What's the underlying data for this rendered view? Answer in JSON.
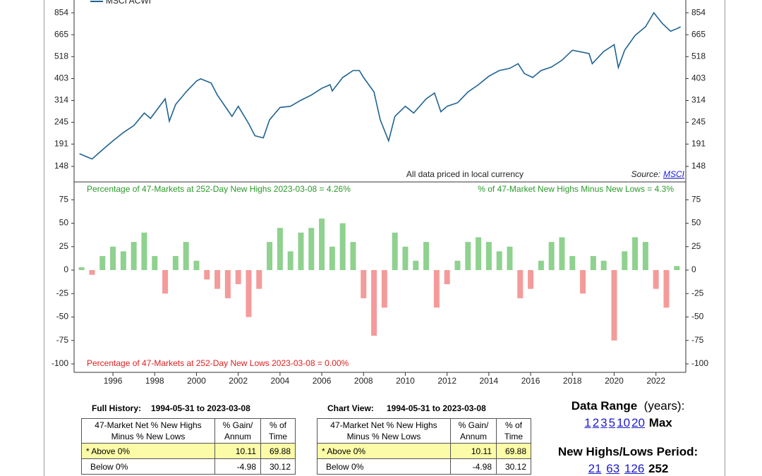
{
  "chart_data": [
    {
      "type": "line",
      "log_scale": true,
      "annotation": "All data priced in local currency",
      "source_label": "Source:",
      "source_link": "MSCI",
      "x": [
        1994.4,
        1995.0,
        1995.5,
        1996.0,
        1996.5,
        1997.0,
        1997.5,
        1997.8,
        1998.5,
        1998.7,
        1999.0,
        1999.5,
        2000.0,
        2000.2,
        2000.7,
        2001.0,
        2001.7,
        2002.0,
        2002.5,
        2002.8,
        2003.2,
        2003.5,
        2004.0,
        2004.5,
        2005.0,
        2005.5,
        2006.0,
        2006.4,
        2006.5,
        2007.0,
        2007.5,
        2007.8,
        2008.0,
        2008.5,
        2008.8,
        2009.2,
        2009.5,
        2010.0,
        2010.4,
        2011.0,
        2011.4,
        2011.7,
        2012.0,
        2012.5,
        2013.0,
        2013.5,
        2014.0,
        2014.5,
        2015.0,
        2015.4,
        2015.7,
        2016.1,
        2016.5,
        2017.0,
        2017.5,
        2018.0,
        2018.8,
        2018.95,
        2019.5,
        2020.0,
        2020.2,
        2020.5,
        2021.0,
        2021.5,
        2021.9,
        2022.3,
        2022.7,
        2023.0,
        2023.18
      ],
      "series": [
        {
          "name": "MSCI ACWI",
          "color": "#1f6391",
          "values": [
            171,
            161,
            179,
            198,
            218,
            236,
            272,
            256,
            320,
            248,
            300,
            346,
            392,
            402,
            383,
            334,
            262,
            294,
            241,
            210,
            205,
            252,
            290,
            294,
            315,
            334,
            361,
            376,
            350,
            408,
            442,
            442,
            408,
            346,
            252,
            198,
            262,
            294,
            272,
            320,
            342,
            276,
            294,
            306,
            346,
            376,
            414,
            442,
            453,
            478,
            427,
            408,
            442,
            460,
            497,
            557,
            536,
            478,
            549,
            594,
            457,
            557,
            659,
            728,
            854,
            757,
            692,
            712,
            728
          ]
        }
      ],
      "xlim": [
        1994.14,
        2023.43
      ],
      "ylim": [
        124,
        988
      ],
      "yticks": [
        148,
        191,
        245,
        314,
        403,
        518,
        665,
        854
      ]
    },
    {
      "type": "bar",
      "label_highs": "Percentage of 47-Markets at 252-Day New Highs 2023-03-08 = 4.26%",
      "label_net": "% of 47-Market New Highs Minus New Lows = 4.3%",
      "label_lows": "Percentage of 47-Markets at 252-Day New Lows 2023-03-08 = 0.00%",
      "x": [
        1994.5,
        1995.0,
        1995.5,
        1996.0,
        1996.5,
        1997.0,
        1997.5,
        1998.0,
        1998.5,
        1999.0,
        1999.5,
        2000.0,
        2000.5,
        2001.0,
        2001.5,
        2002.0,
        2002.5,
        2003.0,
        2003.5,
        2004.0,
        2004.5,
        2005.0,
        2005.5,
        2006.0,
        2006.5,
        2007.0,
        2007.5,
        2008.0,
        2008.5,
        2009.0,
        2009.5,
        2010.0,
        2010.5,
        2011.0,
        2011.5,
        2012.0,
        2012.5,
        2013.0,
        2013.5,
        2014.0,
        2014.5,
        2015.0,
        2015.5,
        2016.0,
        2016.5,
        2017.0,
        2017.5,
        2018.0,
        2018.5,
        2019.0,
        2019.5,
        2020.0,
        2020.5,
        2021.0,
        2021.5,
        2022.0,
        2022.5,
        2023.0
      ],
      "values": [
        3,
        -5,
        15,
        25,
        20,
        30,
        40,
        15,
        -25,
        15,
        30,
        10,
        -10,
        -20,
        -30,
        -15,
        -50,
        -20,
        30,
        45,
        20,
        40,
        45,
        55,
        25,
        50,
        30,
        -30,
        -70,
        -40,
        40,
        25,
        10,
        30,
        -40,
        -15,
        10,
        30,
        35,
        30,
        20,
        25,
        -30,
        -20,
        10,
        30,
        35,
        15,
        -25,
        15,
        10,
        -75,
        20,
        35,
        30,
        -20,
        -40,
        4.3
      ],
      "pos_color": "#8fd18f",
      "neg_color": "#f59a9a",
      "xlim": [
        1994.14,
        2023.43
      ],
      "ylim": [
        -109,
        94
      ],
      "yticks": [
        75,
        50,
        25,
        0,
        -25,
        -50,
        -75,
        -100
      ],
      "xticks": [
        1996,
        1998,
        2000,
        2002,
        2004,
        2006,
        2008,
        2010,
        2012,
        2014,
        2016,
        2018,
        2020,
        2022
      ]
    }
  ],
  "tables": [
    {
      "title": "Full History:",
      "range": "1994-05-31 to 2023-03-08",
      "header": [
        "47-Market Net % New Highs Minus % New Lows",
        "% Gain/ Annum",
        "% of Time"
      ],
      "rows": [
        [
          "* Above 0%",
          "10.11",
          "69.88"
        ],
        [
          "Below 0%",
          "-4.98",
          "30.12"
        ]
      ]
    },
    {
      "title": "Chart View:",
      "range": "1994-05-31 to 2023-03-08",
      "header": [
        "47-Market Net % New Highs Minus % New Lows",
        "% Gain/ Annum",
        "% of Time"
      ],
      "rows": [
        [
          "* Above 0%",
          "10.11",
          "69.88"
        ],
        [
          "Below 0%",
          "-4.98",
          "30.12"
        ]
      ]
    }
  ],
  "controls": {
    "range_title": "Data Range",
    "range_unit": "(years):",
    "range_options": [
      "1",
      "2",
      "3",
      "5",
      "10",
      "20"
    ],
    "range_selected": "Max",
    "period_title": "New Highs/Lows Period:",
    "period_options": [
      "21",
      "63",
      "126"
    ],
    "period_selected": "252"
  }
}
